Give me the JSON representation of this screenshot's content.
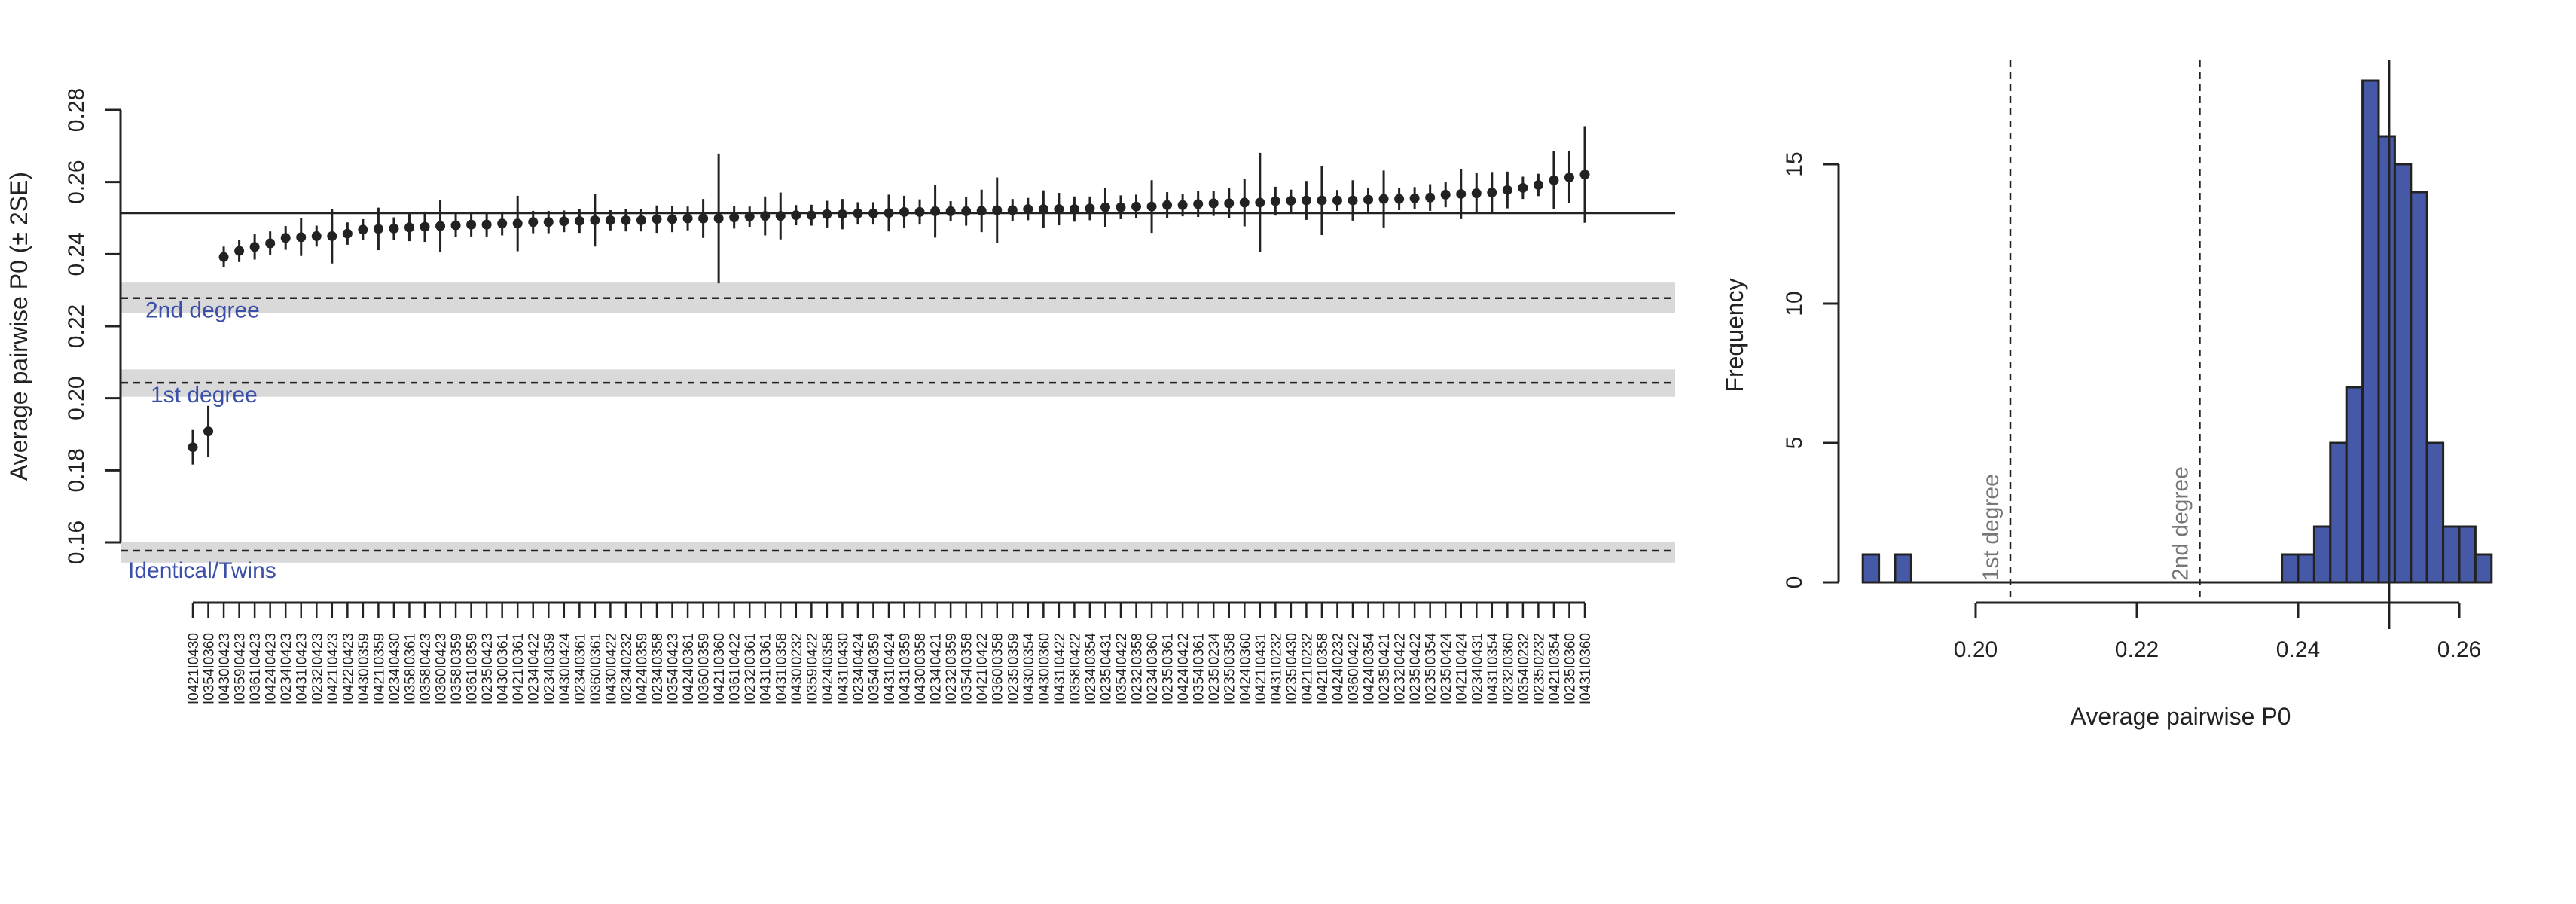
{
  "colors": {
    "points": "#222222",
    "band": "#d9d9d9",
    "band_label": "#3b4fa8",
    "hist_fill": "#4659a7",
    "hist_line_label": "#777777",
    "axis": "#222222"
  },
  "chart_data": [
    {
      "type": "scatter",
      "subtype": "point-with-error-bars",
      "ylabel": "Average pairwise P0 (± 2SE)",
      "ylim": [
        0.16,
        0.28
      ],
      "yticks": [
        "0.16",
        "0.18",
        "0.20",
        "0.22",
        "0.24",
        "0.26",
        "0.28"
      ],
      "grid": false,
      "mean_line": 0.2514,
      "reference_lines": [
        {
          "label": "2nd degree",
          "value": 0.2278,
          "band": [
            0.2236,
            0.2321
          ]
        },
        {
          "label": "1st degree",
          "value": 0.2043,
          "band": [
            0.2004,
            0.208
          ]
        },
        {
          "label": "Identical/Twins",
          "value": 0.1577,
          "band": [
            0.1544,
            0.16
          ]
        }
      ],
      "points": [
        [
          "I0421I0430",
          0.1864,
          0.0048
        ],
        [
          "I0354I0360",
          0.1908,
          0.0071
        ],
        [
          "I0430I0423",
          0.2392,
          0.0029
        ],
        [
          "I0359I0423",
          0.2409,
          0.0031
        ],
        [
          "I0361I0423",
          0.242,
          0.0035
        ],
        [
          "I0424I0423",
          0.243,
          0.0033
        ],
        [
          "I0234I0423",
          0.2445,
          0.0033
        ],
        [
          "I0431I0423",
          0.2447,
          0.0052
        ],
        [
          "I0232I0423",
          0.245,
          0.0029
        ],
        [
          "I0421I0423",
          0.245,
          0.0076
        ],
        [
          "I0422I0423",
          0.2457,
          0.0031
        ],
        [
          "I0430I0359",
          0.2468,
          0.0029
        ],
        [
          "I0421I0359",
          0.247,
          0.0059
        ],
        [
          "I0234I0430",
          0.2471,
          0.0031
        ],
        [
          "I0358I0361",
          0.2474,
          0.0038
        ],
        [
          "I0358I0423",
          0.2476,
          0.0042
        ],
        [
          "I0360I0423",
          0.2478,
          0.0073
        ],
        [
          "I0358I0359",
          0.248,
          0.0033
        ],
        [
          "I0361I0359",
          0.2482,
          0.0033
        ],
        [
          "I0235I0423",
          0.2482,
          0.0033
        ],
        [
          "I0430I0361",
          0.2485,
          0.0033
        ],
        [
          "I0421I0361",
          0.2485,
          0.0077
        ],
        [
          "I0234I0422",
          0.2489,
          0.0031
        ],
        [
          "I0234I0359",
          0.2489,
          0.0031
        ],
        [
          "I0430I0424",
          0.2491,
          0.003
        ],
        [
          "I0234I0361",
          0.2492,
          0.0033
        ],
        [
          "I0360I0361",
          0.2494,
          0.0073
        ],
        [
          "I0430I0422",
          0.2494,
          0.0028
        ],
        [
          "I0234I0232",
          0.2494,
          0.0031
        ],
        [
          "I0424I0359",
          0.2494,
          0.0031
        ],
        [
          "I0234I0358",
          0.2497,
          0.0038
        ],
        [
          "I0354I0423",
          0.2497,
          0.0036
        ],
        [
          "I0424I0361",
          0.2499,
          0.0033
        ],
        [
          "I0360I0359",
          0.2499,
          0.0054
        ],
        [
          "I0421I0360",
          0.2499,
          0.018
        ],
        [
          "I0361I0422",
          0.2502,
          0.0031
        ],
        [
          "I0232I0361",
          0.2504,
          0.0028
        ],
        [
          "I0431I0361",
          0.2506,
          0.0054
        ],
        [
          "I0431I0358",
          0.2506,
          0.0065
        ],
        [
          "I0430I0232",
          0.2508,
          0.0028
        ],
        [
          "I0359I0422",
          0.2508,
          0.0029
        ],
        [
          "I0424I0358",
          0.2511,
          0.0037
        ],
        [
          "I0431I0430",
          0.2511,
          0.0042
        ],
        [
          "I0234I0424",
          0.2513,
          0.0031
        ],
        [
          "I0354I0359",
          0.2513,
          0.0031
        ],
        [
          "I0431I0424",
          0.2514,
          0.0051
        ],
        [
          "I0431I0359",
          0.2517,
          0.0045
        ],
        [
          "I0430I0358",
          0.2517,
          0.0035
        ],
        [
          "I0234I0421",
          0.2519,
          0.0073
        ],
        [
          "I0232I0359",
          0.2519,
          0.0028
        ],
        [
          "I0354I0358",
          0.2519,
          0.004
        ],
        [
          "I0421I0422",
          0.252,
          0.0059
        ],
        [
          "I0360I0358",
          0.2522,
          0.0091
        ],
        [
          "I0235I0359",
          0.2522,
          0.0031
        ],
        [
          "I0430I0354",
          0.2525,
          0.0031
        ],
        [
          "I0430I0360",
          0.2525,
          0.0052
        ],
        [
          "I0431I0422",
          0.2525,
          0.0045
        ],
        [
          "I0358I0422",
          0.2525,
          0.0035
        ],
        [
          "I0234I0354",
          0.2527,
          0.0033
        ],
        [
          "I0235I0431",
          0.253,
          0.0054
        ],
        [
          "I0354I0422",
          0.253,
          0.0033
        ],
        [
          "I0232I0358",
          0.2532,
          0.0033
        ],
        [
          "I0234I0360",
          0.2532,
          0.0073
        ],
        [
          "I0235I0361",
          0.2536,
          0.0036
        ],
        [
          "I0424I0422",
          0.2536,
          0.0031
        ],
        [
          "I0354I0361",
          0.2539,
          0.0036
        ],
        [
          "I0235I0234",
          0.2541,
          0.0035
        ],
        [
          "I0235I0358",
          0.2541,
          0.0042
        ],
        [
          "I0424I0360",
          0.2543,
          0.0066
        ],
        [
          "I0421I0431",
          0.2543,
          0.0138
        ],
        [
          "I0431I0232",
          0.2547,
          0.004
        ],
        [
          "I0235I0430",
          0.2548,
          0.0031
        ],
        [
          "I0421I0232",
          0.2549,
          0.0054
        ],
        [
          "I0421I0358",
          0.2549,
          0.0096
        ],
        [
          "I0424I0232",
          0.2549,
          0.0029
        ],
        [
          "I0360I0422",
          0.2549,
          0.0056
        ],
        [
          "I0424I0354",
          0.2551,
          0.0033
        ],
        [
          "I0235I0421",
          0.2553,
          0.0079
        ],
        [
          "I0232I0422",
          0.2553,
          0.0031
        ],
        [
          "I0235I0422",
          0.2555,
          0.0031
        ],
        [
          "I0235I0354",
          0.2557,
          0.0037
        ],
        [
          "I0235I0424",
          0.2565,
          0.0035
        ],
        [
          "I0421I0424",
          0.2567,
          0.007
        ],
        [
          "I0234I0431",
          0.2569,
          0.0056
        ],
        [
          "I0431I0354",
          0.2571,
          0.0057
        ],
        [
          "I0232I0360",
          0.2578,
          0.0051
        ],
        [
          "I0354I0232",
          0.2584,
          0.0031
        ],
        [
          "I0235I0232",
          0.2592,
          0.0031
        ],
        [
          "I0421I0354",
          0.2605,
          0.008
        ],
        [
          "I0235I0360",
          0.2613,
          0.0072
        ],
        [
          "I0431I0360",
          0.2621,
          0.0134
        ]
      ]
    },
    {
      "type": "bar",
      "subtype": "histogram",
      "xlabel": "Average pairwise P0",
      "ylabel": "Frequency",
      "xticks": [
        "0.20",
        "0.22",
        "0.24",
        "0.26"
      ],
      "yticks": [
        "0",
        "5",
        "10",
        "15"
      ],
      "ylim": [
        0,
        18
      ],
      "bin_width": 0.002,
      "bins": [
        {
          "start": 0.186,
          "count": 1
        },
        {
          "start": 0.19,
          "count": 1
        },
        {
          "start": 0.238,
          "count": 1
        },
        {
          "start": 0.24,
          "count": 1
        },
        {
          "start": 0.242,
          "count": 2
        },
        {
          "start": 0.244,
          "count": 5
        },
        {
          "start": 0.246,
          "count": 7
        },
        {
          "start": 0.248,
          "count": 18
        },
        {
          "start": 0.25,
          "count": 16
        },
        {
          "start": 0.252,
          "count": 15
        },
        {
          "start": 0.254,
          "count": 14
        },
        {
          "start": 0.256,
          "count": 5
        },
        {
          "start": 0.258,
          "count": 2
        },
        {
          "start": 0.26,
          "count": 2
        },
        {
          "start": 0.262,
          "count": 1
        }
      ],
      "mean_line": 0.2513,
      "reference_lines": [
        {
          "label": "1st degree",
          "value": 0.2043
        },
        {
          "label": "2nd degree",
          "value": 0.2278
        }
      ]
    }
  ]
}
